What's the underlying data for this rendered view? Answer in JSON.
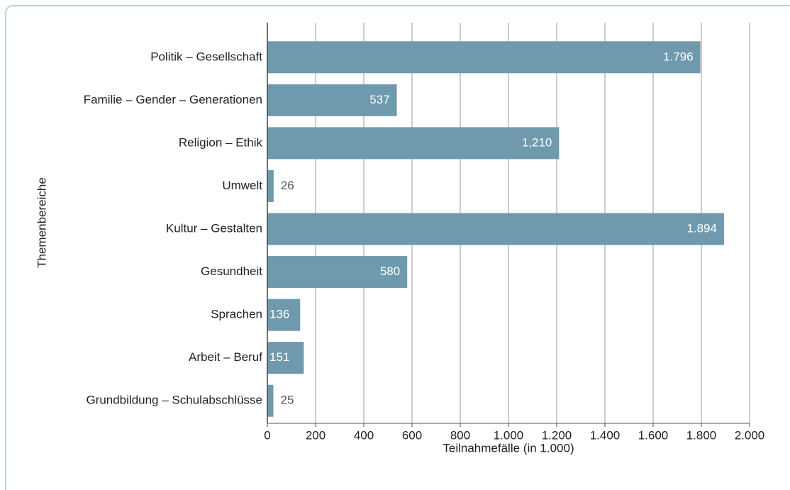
{
  "chart_data": {
    "type": "bar",
    "orientation": "horizontal",
    "x_label": "Teilnahmefälle (in 1.000)",
    "y_label": "Themenbereiche",
    "categories": [
      "Politik – Gesellschaft",
      "Familie – Gender – Generationen",
      "Religion – Ethik",
      "Umwelt",
      "Kultur – Gestalten",
      "Gesundheit",
      "Sprachen",
      "Arbeit – Beruf",
      "Grundbildung – Schulabschlüsse"
    ],
    "values": [
      1796,
      537,
      1210,
      26,
      1894,
      580,
      136,
      151,
      25
    ],
    "value_labels": [
      "1.796",
      "537",
      "1,210",
      "26",
      "1.894",
      "580",
      "136",
      "151",
      "25"
    ],
    "color": "#6f9aad",
    "xlim": [
      0,
      2000
    ],
    "xticks": [
      0,
      200,
      400,
      600,
      800,
      {
        "value": 1000,
        "label": "1.000"
      },
      {
        "value": 1200,
        "label": "1.200"
      },
      {
        "value": 1400,
        "label": "1.400"
      },
      {
        "value": 1600,
        "label": "1.600"
      },
      {
        "value": 1800,
        "label": "1.800"
      },
      {
        "value": 2000,
        "label": "2.000"
      }
    ],
    "grid": true
  }
}
